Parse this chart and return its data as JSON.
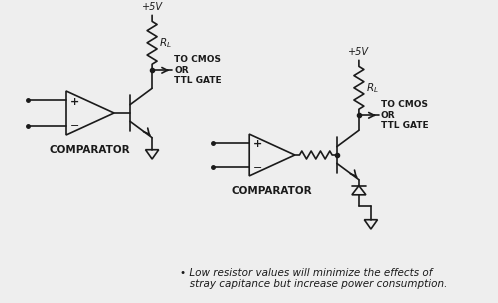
{
  "bg_color": "#eeeeee",
  "line_color": "#1a1a1a",
  "footnote_line1": "• Low resistor values will minimize the effects of",
  "footnote_line2": "   stray capitance but increase power consumption.",
  "comparator_label": "COMPARATOR",
  "to_cmos_label1": "TO CMOS",
  "to_cmos_label2": "OR",
  "to_cmos_label3": "TTL GATE",
  "vcc_label": "+5V"
}
